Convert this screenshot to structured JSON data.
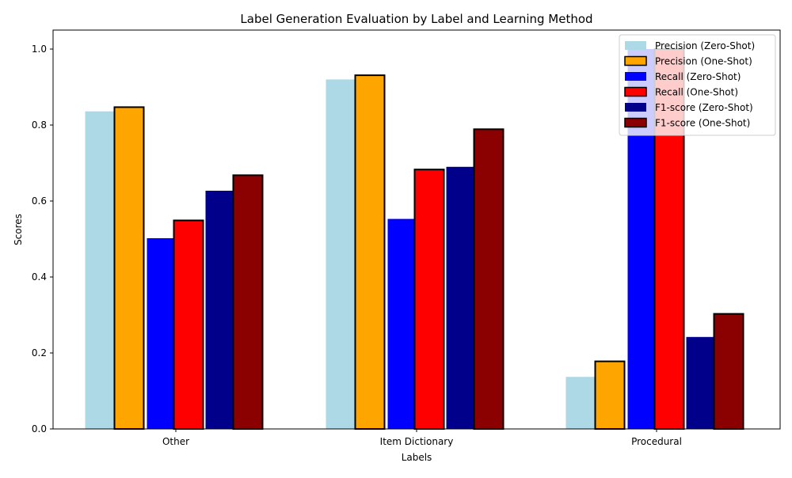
{
  "chart_data": {
    "type": "bar",
    "title": "Label Generation Evaluation by Label and Learning Method",
    "xlabel": "Labels",
    "ylabel": "Scores",
    "categories": [
      "Other",
      "Item Dictionary",
      "Procedural"
    ],
    "ylim": [
      0,
      1.05
    ],
    "yticks": [
      0.0,
      0.2,
      0.4,
      0.6,
      0.8,
      1.0
    ],
    "ytick_labels": [
      "0.0",
      "0.2",
      "0.4",
      "0.6",
      "0.8",
      "1.0"
    ],
    "grid": false,
    "legend_position": "top-right",
    "series": [
      {
        "name": "Precision (Zero-Shot)",
        "values": [
          0.836,
          0.92,
          0.137
        ],
        "color": "#add8e6",
        "outlined": false
      },
      {
        "name": "Precision (One-Shot)",
        "values": [
          0.847,
          0.931,
          0.178
        ],
        "color": "#ffa500",
        "outlined": true
      },
      {
        "name": "Recall (Zero-Shot)",
        "values": [
          0.502,
          0.553,
          1.0
        ],
        "color": "#0000ff",
        "outlined": false
      },
      {
        "name": "Recall (One-Shot)",
        "values": [
          0.549,
          0.683,
          1.0
        ],
        "color": "#ff0000",
        "outlined": true
      },
      {
        "name": "F1-score (Zero-Shot)",
        "values": [
          0.627,
          0.69,
          0.242
        ],
        "color": "#00008b",
        "outlined": false
      },
      {
        "name": "F1-score (One-Shot)",
        "values": [
          0.668,
          0.789,
          0.303
        ],
        "color": "#8b0000",
        "outlined": true
      }
    ]
  }
}
